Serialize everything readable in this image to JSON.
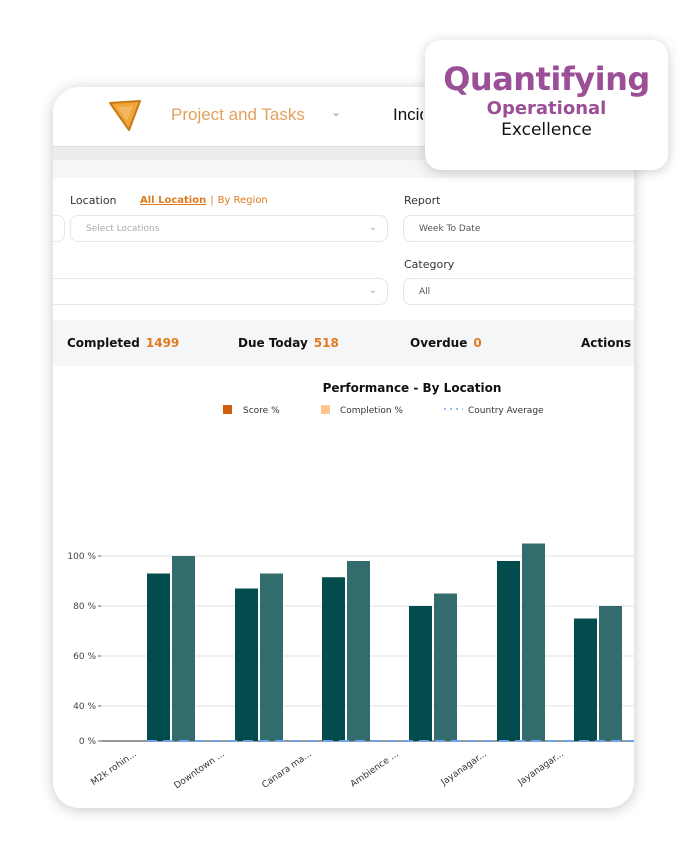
{
  "header": {
    "title": "Project and Tasks",
    "next_item": "Incidents"
  },
  "filters": {
    "location_label": "Location",
    "all_location": "All Location",
    "separator": "|",
    "by_region": "By Region",
    "location_placeholder": "Select Locations",
    "report_label": "Report",
    "report_value": "Week To Date",
    "category_label": "Category",
    "category_value": "All"
  },
  "stats": [
    {
      "label": "Completed",
      "value": "1499"
    },
    {
      "label": "Due Today",
      "value": "518"
    },
    {
      "label": "Overdue",
      "value": "0"
    },
    {
      "label": "Actions",
      "value": ""
    }
  ],
  "badge": {
    "line1": "Quantifying",
    "line2": "Operational",
    "line3": "Excellence"
  },
  "colors": {
    "accent": "#e07b1f",
    "score": "#d35f0a",
    "completion": "#ffc48f",
    "avg": "#6fa3ef",
    "bar_dark": "#024c4d",
    "bar_light": "#336c6c",
    "brand": "#9b4f96"
  },
  "chart_data": {
    "type": "bar",
    "title": "Performance - By Location",
    "categories": [
      "M2k rohin...",
      "Downtown ...",
      "Canara ma...",
      "Ambience ...",
      "Jayanagar...",
      "Jayanagar..."
    ],
    "series": [
      {
        "name": "Score %",
        "values": [
          93,
          87,
          91.5,
          80,
          98,
          75
        ]
      },
      {
        "name": "Completion %",
        "values": [
          100,
          93,
          98,
          85,
          105,
          80
        ]
      },
      {
        "name": "Country Average",
        "values": [
          0,
          0,
          0,
          0,
          0,
          0
        ]
      }
    ],
    "yticks": [
      "0 %",
      "40 %",
      "60 %",
      "80 %",
      "100 %"
    ],
    "ytick_values": [
      0,
      40,
      60,
      80,
      100
    ],
    "grid": true,
    "legend": "top"
  }
}
